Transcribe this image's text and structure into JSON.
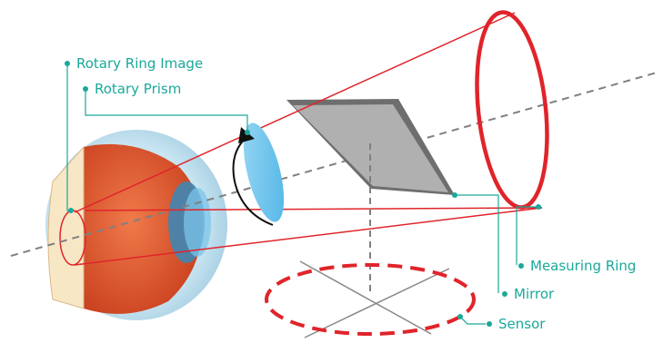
{
  "diagram": {
    "labels": {
      "rotary_ring_image": "Rotary Ring Image",
      "rotary_prism": "Rotary Prism",
      "measuring_ring": "Measuring Ring",
      "mirror": "Mirror",
      "sensor": "Sensor"
    },
    "colors": {
      "callout": "#1aa89a",
      "beam": "#e0242a",
      "axis": "#808080",
      "mirror_face": "#b0b0b0",
      "mirror_edge": "#6e6e6e",
      "prism": "#6cc6ee",
      "iris": "#3a7fa8",
      "eye_flesh": "#e2582e",
      "eye_sclera": "#bfe0ef"
    }
  }
}
